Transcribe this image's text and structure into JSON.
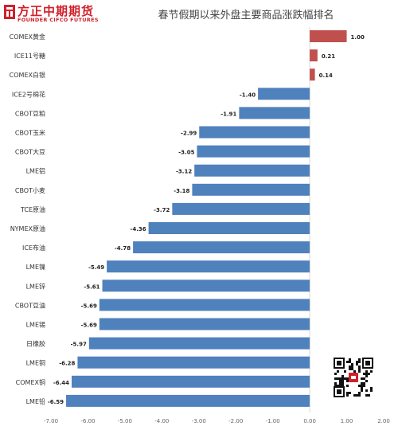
{
  "header": {
    "logo_cn": "方正中期期货",
    "logo_en": "FOUNDER CIFCO FUTURES"
  },
  "chart_data": {
    "type": "bar",
    "orientation": "horizontal",
    "title": "春节假期以来外盘主要商品涨跌幅排名",
    "xlabel": "",
    "ylabel": "",
    "xlim": [
      -7.0,
      2.0
    ],
    "xticks": [
      -7.0,
      -6.0,
      -5.0,
      -4.0,
      -3.0,
      -2.0,
      -1.0,
      0.0,
      1.0,
      2.0
    ],
    "xtick_labels": [
      "-7.00",
      "-6.00",
      "-5.00",
      "-4.00",
      "-3.00",
      "-2.00",
      "-1.00",
      "0.00",
      "1.00",
      "2.00"
    ],
    "grid": false,
    "categories": [
      "COMEX黄金",
      "ICE11号糖",
      "COMEX白银",
      "ICE2号棉花",
      "CBOT豆粕",
      "CBOT玉米",
      "CBOT大豆",
      "LME铝",
      "CBOT小麦",
      "TCE原油",
      "NYMEX原油",
      "ICE布油",
      "LME镍",
      "LME锌",
      "CBOT豆油",
      "LME锡",
      "日橡胶",
      "LME铜",
      "COMEX铜",
      "LME铅"
    ],
    "values": [
      1.0,
      0.21,
      0.14,
      -1.4,
      -1.91,
      -2.99,
      -3.05,
      -3.12,
      -3.18,
      -3.72,
      -4.36,
      -4.78,
      -5.49,
      -5.61,
      -5.69,
      -5.69,
      -5.97,
      -6.28,
      -6.44,
      -6.59
    ],
    "value_labels": [
      "1.00",
      "0.21",
      "0.14",
      "-1.40",
      "-1.91",
      "-2.99",
      "-3.05",
      "-3.12",
      "-3.18",
      "-3.72",
      "-4.36",
      "-4.78",
      "-5.49",
      "-5.61",
      "-5.69",
      "-5.69",
      "-5.97",
      "-6.28",
      "-6.44",
      "-6.59"
    ],
    "colors": {
      "positive": "#c0504d",
      "negative": "#4f81bd"
    }
  },
  "qr_code": {
    "icon": "qr-code-icon"
  }
}
